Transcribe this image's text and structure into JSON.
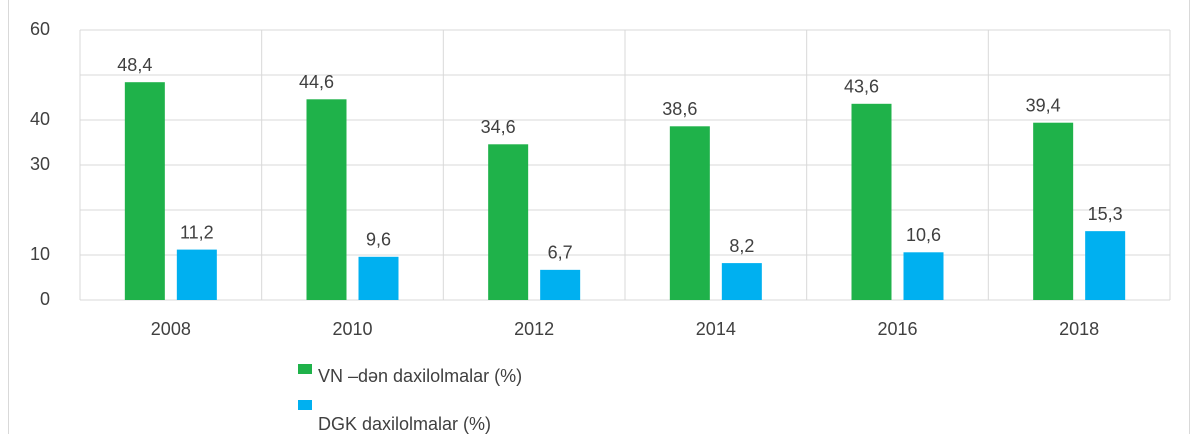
{
  "chart_data": {
    "type": "bar",
    "categories": [
      "2008",
      "2010",
      "2012",
      "2014",
      "2016",
      "2018"
    ],
    "series": [
      {
        "name": "VN –dən daxilolmalar (%)",
        "color": "#1fb24a",
        "values": [
          48.4,
          44.6,
          34.6,
          38.6,
          43.6,
          39.4
        ],
        "value_labels": [
          "48,4",
          "44,6",
          "34,6",
          "38,6",
          "43,6",
          "39,4"
        ]
      },
      {
        "name": "DGK daxilolmalar (%)",
        "color": "#00b0f0",
        "values": [
          11.2,
          9.6,
          6.7,
          8.2,
          10.6,
          15.3
        ],
        "value_labels": [
          "11,2",
          "9,6",
          "6,7",
          "8,2",
          "10,6",
          "15,3"
        ]
      }
    ],
    "ylim": [
      0,
      60
    ],
    "yticks": [
      0,
      10,
      {
        "value": 20,
        "label": null
      },
      30,
      40,
      {
        "value": 50,
        "label": null
      },
      60
    ],
    "grid": true
  }
}
